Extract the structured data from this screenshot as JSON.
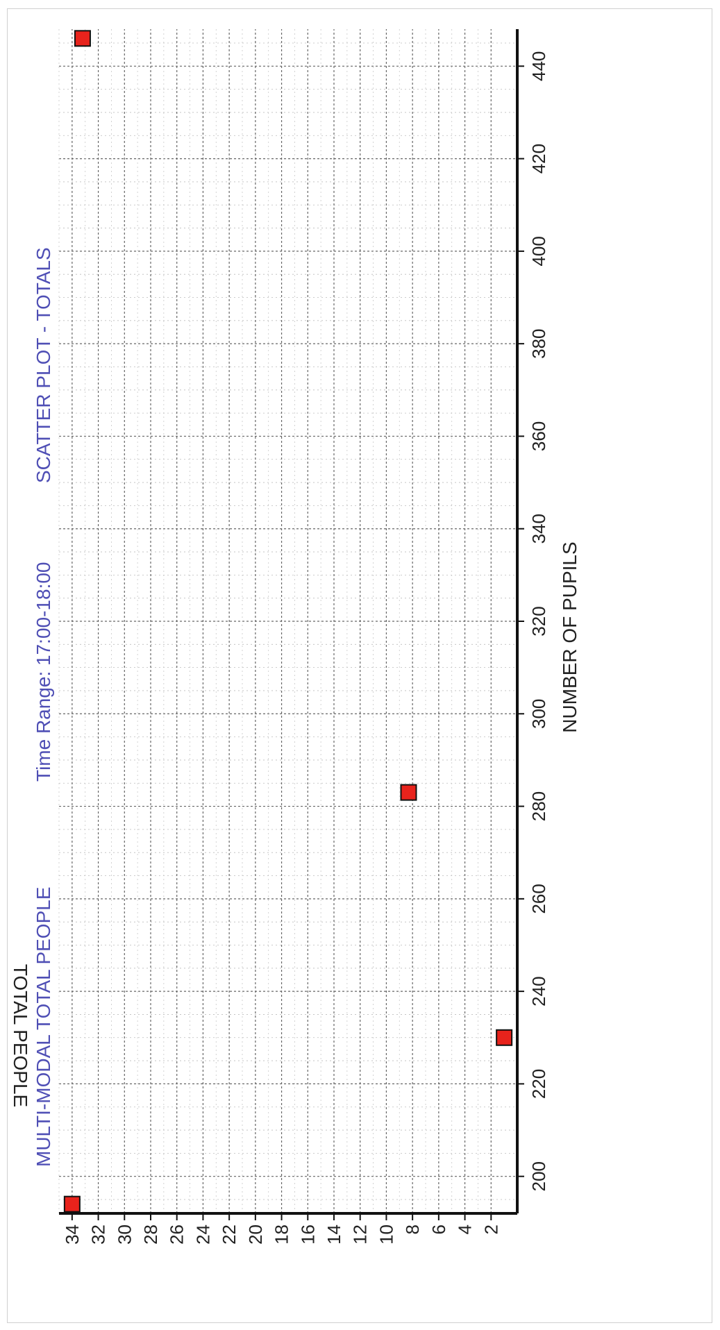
{
  "chart_data": {
    "type": "scatter",
    "title": "SCATTER PLOT - TOTALS",
    "time_range": "Time Range: 17:00-18:00",
    "subtitle": "MULTI-MODAL  TOTAL PEOPLE",
    "xlabel": "NUMBER OF PUPILS",
    "ylabel": "TOTAL PEOPLE",
    "xlim": [
      192,
      448
    ],
    "ylim": [
      0,
      35
    ],
    "x_ticks": [
      "200",
      "220",
      "240",
      "260",
      "280",
      "300",
      "320",
      "340",
      "360",
      "380",
      "400",
      "420",
      "440"
    ],
    "y_ticks": [
      "2",
      "4",
      "6",
      "8",
      "10",
      "12",
      "14",
      "16",
      "18",
      "20",
      "22",
      "24",
      "26",
      "28",
      "30",
      "32",
      "34"
    ],
    "grid": true,
    "points": [
      {
        "x": 194,
        "y": 34
      },
      {
        "x": 230,
        "y": 1
      },
      {
        "x": 283,
        "y": 8.3
      },
      {
        "x": 446,
        "y": 33.2
      }
    ],
    "colors": {
      "marker": "#e8231c",
      "marker_edge": "#111111",
      "heading": "#4f4fb5",
      "grid": "#888888"
    }
  }
}
